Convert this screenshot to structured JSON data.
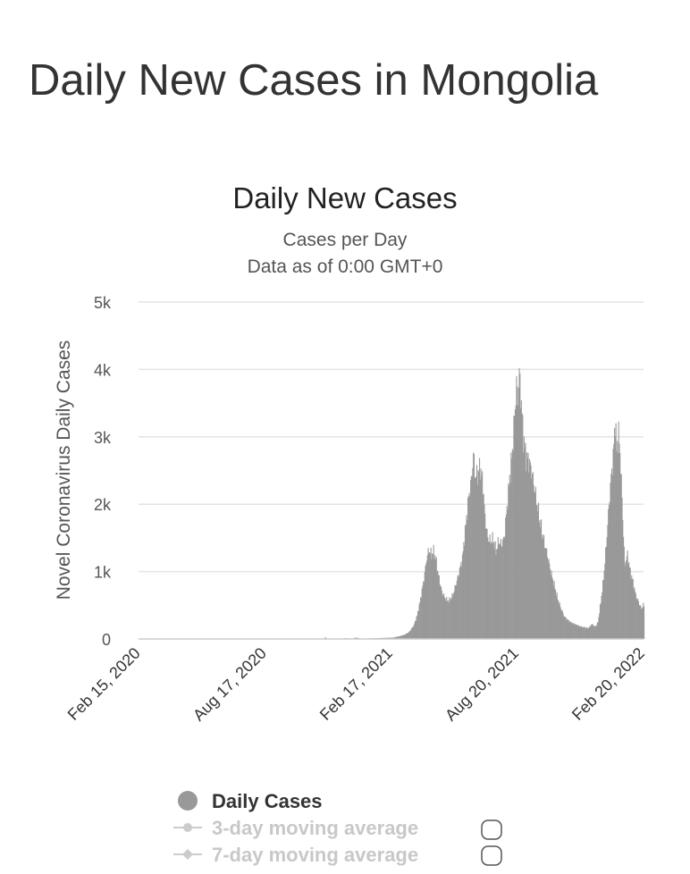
{
  "page": {
    "title": "Daily New Cases in Mongolia"
  },
  "chart_data": {
    "type": "bar",
    "title": "Daily New Cases",
    "subtitle": "Cases per Day",
    "subtitle2": "Data as of 0:00 GMT+0",
    "ylabel": "Novel Coronavirus Daily Cases",
    "xlabel": "",
    "ylim": [
      0,
      5000
    ],
    "yticks": [
      {
        "value": 0,
        "label": "0"
      },
      {
        "value": 1000,
        "label": "1k"
      },
      {
        "value": 2000,
        "label": "2k"
      },
      {
        "value": 3000,
        "label": "3k"
      },
      {
        "value": 4000,
        "label": "4k"
      },
      {
        "value": 5000,
        "label": "5k"
      }
    ],
    "x_range": [
      "2020-02-15",
      "2022-02-21"
    ],
    "xticks": [
      {
        "date": "2020-02-15",
        "label": "Feb 15, 2020"
      },
      {
        "date": "2020-08-17",
        "label": "Aug 17, 2020"
      },
      {
        "date": "2021-02-17",
        "label": "Feb 17, 2021"
      },
      {
        "date": "2021-08-20",
        "label": "Aug 20, 2021"
      },
      {
        "date": "2022-02-20",
        "label": "Feb 20, 2022"
      }
    ],
    "grid": true,
    "bar_color": "#999999",
    "series": [
      {
        "name": "Daily Cases",
        "points": [
          [
            "2020-02-15",
            0
          ],
          [
            "2020-11-12",
            0
          ],
          [
            "2020-11-13",
            30
          ],
          [
            "2020-11-14",
            10
          ],
          [
            "2020-11-20",
            0
          ],
          [
            "2020-12-10",
            0
          ],
          [
            "2020-12-12",
            15
          ],
          [
            "2020-12-20",
            0
          ],
          [
            "2020-12-28",
            20
          ],
          [
            "2021-01-06",
            0
          ],
          [
            "2021-01-20",
            10
          ],
          [
            "2021-02-05",
            15
          ],
          [
            "2021-02-20",
            20
          ],
          [
            "2021-03-01",
            40
          ],
          [
            "2021-03-08",
            60
          ],
          [
            "2021-03-15",
            100
          ],
          [
            "2021-03-22",
            200
          ],
          [
            "2021-03-27",
            350
          ],
          [
            "2021-04-01",
            600
          ],
          [
            "2021-04-06",
            900
          ],
          [
            "2021-04-10",
            1200
          ],
          [
            "2021-04-13",
            1320
          ],
          [
            "2021-04-17",
            1250
          ],
          [
            "2021-04-20",
            1300
          ],
          [
            "2021-04-23",
            1200
          ],
          [
            "2021-04-27",
            950
          ],
          [
            "2021-05-02",
            700
          ],
          [
            "2021-05-07",
            600
          ],
          [
            "2021-05-12",
            560
          ],
          [
            "2021-05-18",
            650
          ],
          [
            "2021-05-25",
            900
          ],
          [
            "2021-06-01",
            1200
          ],
          [
            "2021-06-06",
            1700
          ],
          [
            "2021-06-10",
            2100
          ],
          [
            "2021-06-14",
            2350
          ],
          [
            "2021-06-17",
            2730
          ],
          [
            "2021-06-20",
            2400
          ],
          [
            "2021-06-23",
            2450
          ],
          [
            "2021-06-27",
            2550
          ],
          [
            "2021-07-01",
            2300
          ],
          [
            "2021-07-04",
            1800
          ],
          [
            "2021-07-08",
            1500
          ],
          [
            "2021-07-12",
            1450
          ],
          [
            "2021-07-16",
            1480
          ],
          [
            "2021-07-20",
            1300
          ],
          [
            "2021-07-24",
            1450
          ],
          [
            "2021-07-28",
            1400
          ],
          [
            "2021-08-01",
            1500
          ],
          [
            "2021-08-05",
            1950
          ],
          [
            "2021-08-09",
            2400
          ],
          [
            "2021-08-13",
            2800
          ],
          [
            "2021-08-16",
            3300
          ],
          [
            "2021-08-19",
            3750
          ],
          [
            "2021-08-21",
            3600
          ],
          [
            "2021-08-23",
            3940
          ],
          [
            "2021-08-26",
            3500
          ],
          [
            "2021-08-29",
            3000
          ],
          [
            "2021-09-02",
            2700
          ],
          [
            "2021-09-06",
            2650
          ],
          [
            "2021-09-10",
            2500
          ],
          [
            "2021-09-14",
            2250
          ],
          [
            "2021-09-18",
            2000
          ],
          [
            "2021-09-23",
            1700
          ],
          [
            "2021-09-28",
            1450
          ],
          [
            "2021-10-03",
            1250
          ],
          [
            "2021-10-08",
            1000
          ],
          [
            "2021-10-13",
            800
          ],
          [
            "2021-10-18",
            600
          ],
          [
            "2021-10-23",
            450
          ],
          [
            "2021-10-28",
            330
          ],
          [
            "2021-11-02",
            280
          ],
          [
            "2021-11-07",
            240
          ],
          [
            "2021-11-12",
            220
          ],
          [
            "2021-11-17",
            200
          ],
          [
            "2021-11-22",
            180
          ],
          [
            "2021-11-27",
            170
          ],
          [
            "2021-12-02",
            160
          ],
          [
            "2021-12-07",
            220
          ],
          [
            "2021-12-12",
            180
          ],
          [
            "2021-12-16",
            250
          ],
          [
            "2021-12-20",
            550
          ],
          [
            "2021-12-24",
            900
          ],
          [
            "2021-12-28",
            1400
          ],
          [
            "2022-01-01",
            2000
          ],
          [
            "2022-01-04",
            2400
          ],
          [
            "2022-01-07",
            2700
          ],
          [
            "2022-01-10",
            3250
          ],
          [
            "2022-01-12",
            2800
          ],
          [
            "2022-01-15",
            3050
          ],
          [
            "2022-01-18",
            2600
          ],
          [
            "2022-01-21",
            1800
          ],
          [
            "2022-01-24",
            1100
          ],
          [
            "2022-01-28",
            1250
          ],
          [
            "2022-02-01",
            1000
          ],
          [
            "2022-02-05",
            850
          ],
          [
            "2022-02-09",
            650
          ],
          [
            "2022-02-13",
            550
          ],
          [
            "2022-02-17",
            450
          ],
          [
            "2022-02-20",
            500
          ]
        ]
      }
    ],
    "legend": [
      {
        "label": "Daily Cases",
        "active": true,
        "marker": "circle"
      },
      {
        "label": "3-day moving average",
        "active": false,
        "marker": "line-circle"
      },
      {
        "label": "7-day moving average",
        "active": false,
        "marker": "line-diamond"
      }
    ],
    "legend_position": "bottom-center"
  }
}
